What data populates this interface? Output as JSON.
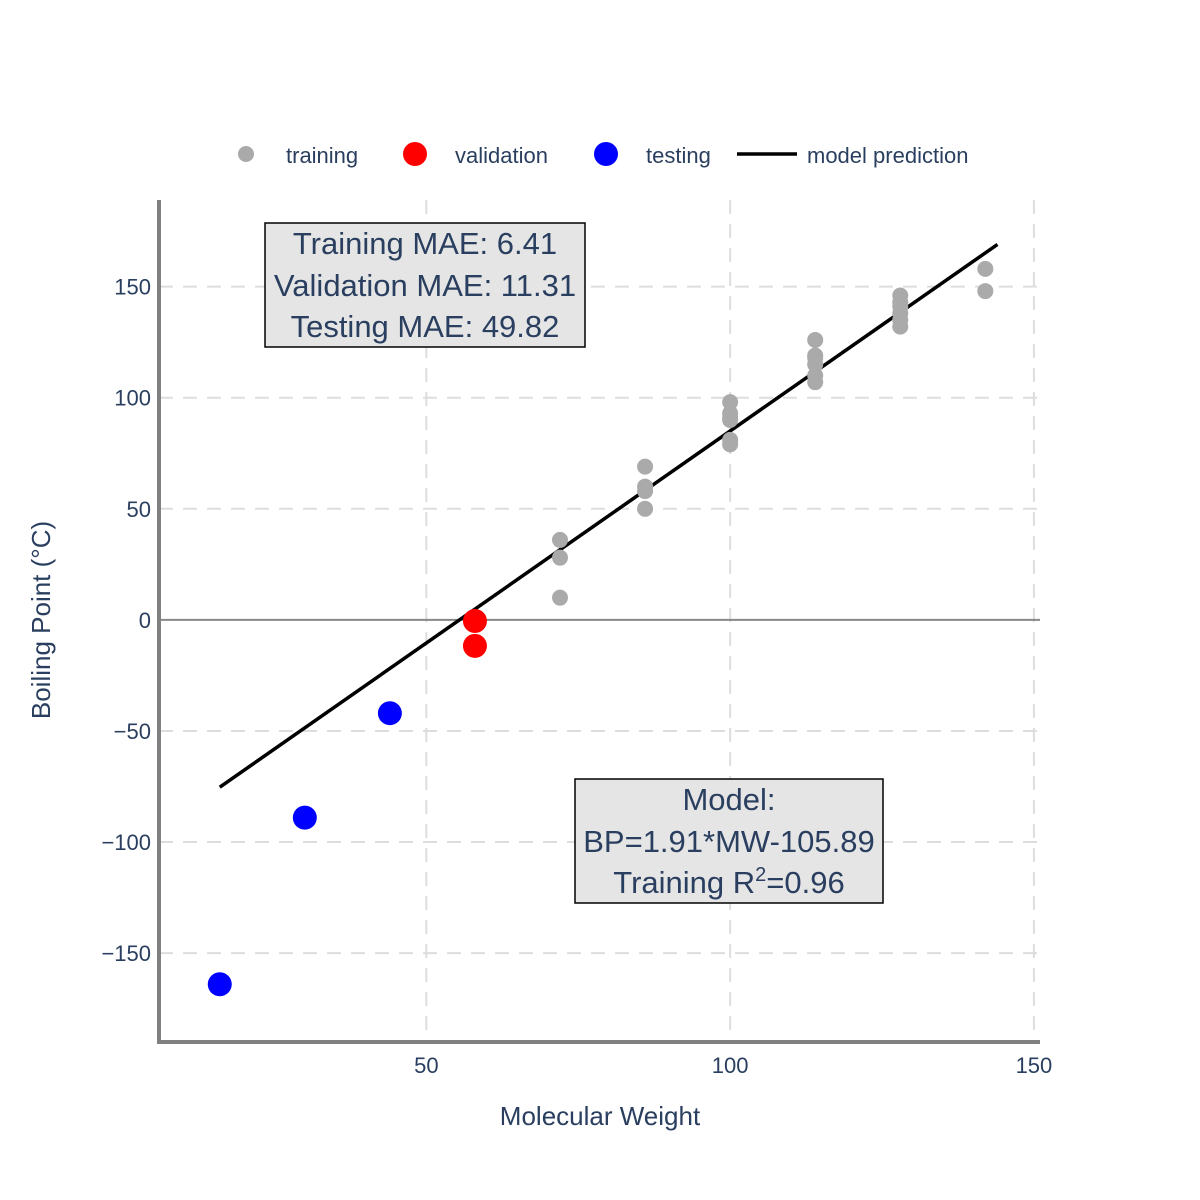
{
  "chart_data": {
    "type": "scatter",
    "xlabel": "Molecular Weight",
    "ylabel": "Boiling Point (°C)",
    "xlim": [
      6,
      151
    ],
    "ylim": [
      -190,
      189
    ],
    "x_ticks": [
      50,
      100,
      150
    ],
    "x_tick_labels": [
      "50",
      "100",
      "150"
    ],
    "y_ticks": [
      -150,
      -100,
      -50,
      0,
      50,
      100,
      150
    ],
    "y_tick_labels": [
      "−150",
      "−100",
      "−50",
      "0",
      "50",
      "100",
      "150"
    ],
    "grid": "dashed",
    "legend_position": "top",
    "series": [
      {
        "name": "training",
        "marker": "circle",
        "color": "#aaaaaa",
        "x": [
          72,
          72,
          72,
          86,
          86,
          86,
          86,
          100,
          100,
          100,
          100,
          100,
          100,
          114,
          114,
          114,
          114,
          114,
          114,
          128,
          128,
          128,
          128,
          128,
          128,
          142,
          142
        ],
        "y": [
          36,
          28,
          10,
          69,
          60,
          58,
          50,
          98,
          93,
          91,
          90,
          81,
          79,
          126,
          119,
          118,
          115,
          110,
          107,
          146,
          143,
          141,
          138,
          135,
          132,
          158,
          148
        ]
      },
      {
        "name": "validation",
        "marker": "circle",
        "color": "#ff0000",
        "x": [
          58,
          58
        ],
        "y": [
          -0.5,
          -11.7
        ]
      },
      {
        "name": "testing",
        "marker": "circle",
        "color": "#0000ff",
        "x": [
          16,
          30,
          44
        ],
        "y": [
          -164,
          -89,
          -42
        ]
      },
      {
        "name": "model prediction",
        "type": "line",
        "color": "#000000",
        "x": [
          16,
          144
        ],
        "y": [
          -75.3,
          169
        ]
      }
    ],
    "annotations": [
      {
        "id": "mae",
        "lines": [
          "Training MAE: 6.41",
          "Validation MAE: 11.31",
          "Testing MAE: 49.82"
        ]
      },
      {
        "id": "model",
        "lines": [
          "Model:",
          "BP=1.91*MW-105.89",
          "Training R",
          "=0.96"
        ],
        "superscript": "2"
      }
    ]
  }
}
